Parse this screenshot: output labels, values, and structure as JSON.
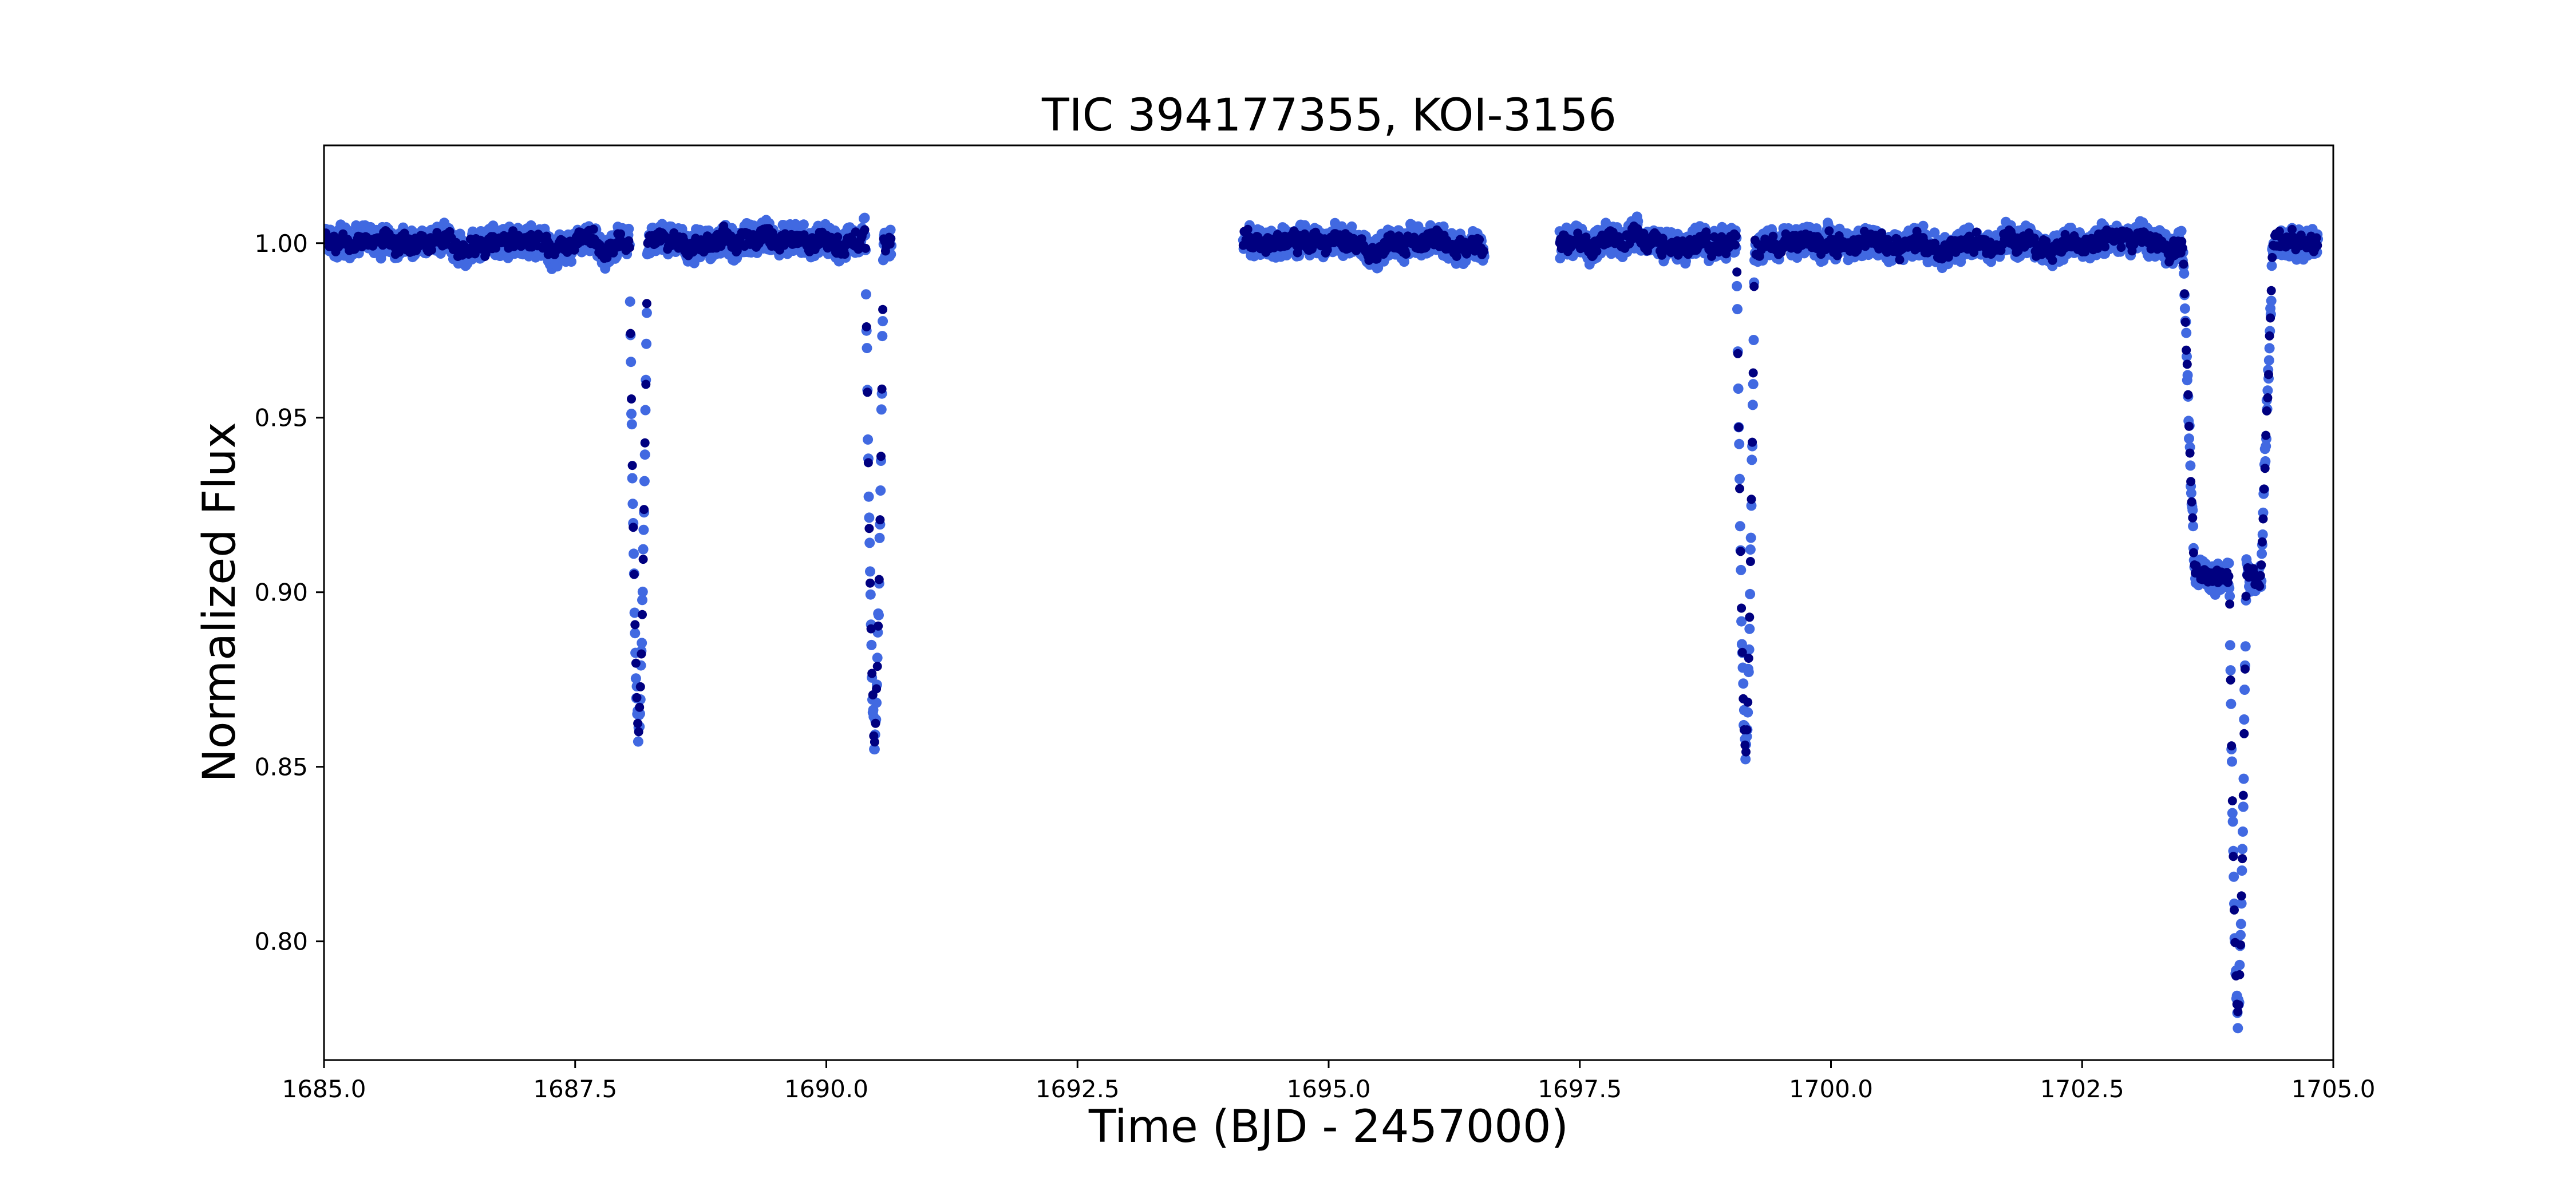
{
  "chart_data": {
    "type": "scatter",
    "title": "TIC 394177355, KOI-3156",
    "xlabel": "Time (BJD - 2457000)",
    "ylabel": "Normalized Flux",
    "xlim": [
      1685.0,
      1705.0
    ],
    "ylim": [
      0.766,
      1.028
    ],
    "xticks": [
      "1685.0",
      "1687.5",
      "1690.0",
      "1692.5",
      "1695.0",
      "1697.5",
      "1700.0",
      "1702.5",
      "1705.0"
    ],
    "xtick_values": [
      1685.0,
      1687.5,
      1690.0,
      1692.5,
      1695.0,
      1697.5,
      1700.0,
      1702.5,
      1705.0
    ],
    "yticks": [
      "0.80",
      "0.85",
      "0.90",
      "0.95",
      "1.00"
    ],
    "ytick_values": [
      0.8,
      0.85,
      0.9,
      0.95,
      1.0
    ],
    "grid": false,
    "legend": "none",
    "colors": {
      "raw": "#4169e1",
      "binned": "#000080"
    },
    "data_segments": [
      {
        "start": 1685.0,
        "end": 1690.65,
        "baseline": 1.0
      },
      {
        "start": 1694.15,
        "end": 1696.55,
        "baseline": 1.0
      },
      {
        "start": 1697.3,
        "end": 1704.85,
        "baseline": 1.0
      }
    ],
    "dips": [
      {
        "center": 1688.13,
        "half_width": 0.09,
        "min_flux": 0.86,
        "shape": "v"
      },
      {
        "center": 1690.48,
        "half_width": 0.09,
        "min_flux": 0.857,
        "shape": "v"
      },
      {
        "center": 1699.15,
        "half_width": 0.09,
        "min_flux": 0.856,
        "shape": "v"
      },
      {
        "center": 1703.95,
        "half_width": 0.45,
        "min_flux": 0.905,
        "shape": "flat"
      },
      {
        "center": 1704.05,
        "half_width": 0.12,
        "min_flux": 0.779,
        "shape": "v"
      }
    ]
  }
}
